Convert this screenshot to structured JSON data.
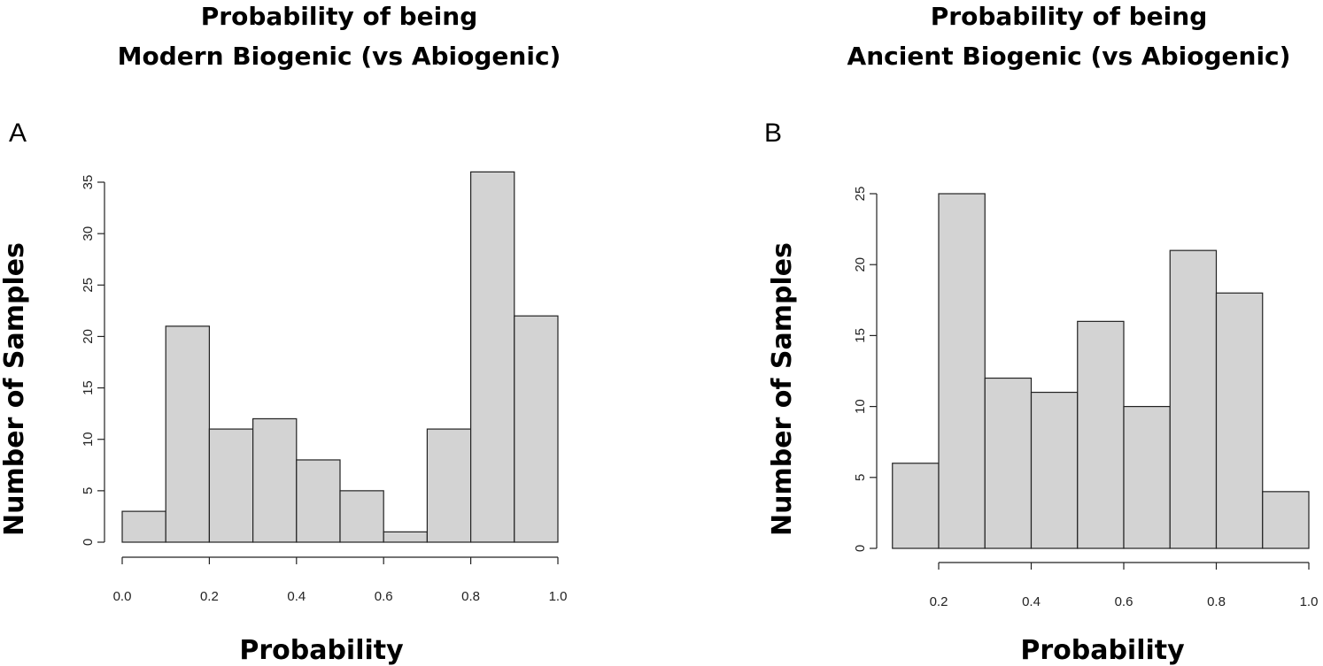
{
  "chart_data": [
    {
      "type": "bar",
      "panel_label": "A",
      "title_lines": [
        "Probability of being",
        "Modern Biogenic (vs Abiogenic)"
      ],
      "xlabel": "Probability",
      "ylabel": "Number of Samples",
      "bin_edges": [
        0.0,
        0.1,
        0.2,
        0.3,
        0.4,
        0.5,
        0.6,
        0.7,
        0.8,
        0.9,
        1.0
      ],
      "values": [
        3,
        21,
        11,
        12,
        8,
        5,
        1,
        11,
        36,
        22
      ],
      "xlim": [
        0.0,
        1.0
      ],
      "ylim": [
        0,
        36
      ],
      "xticks": [
        "0.0",
        "0.2",
        "0.4",
        "0.6",
        "0.8",
        "1.0"
      ],
      "yticks": [
        "0",
        "5",
        "10",
        "15",
        "20",
        "25",
        "30",
        "35"
      ],
      "bar_color": "#d3d3d3",
      "grid": false
    },
    {
      "type": "bar",
      "panel_label": "B",
      "title_lines": [
        "Probability of being",
        "Ancient Biogenic (vs Abiogenic)"
      ],
      "xlabel": "Probability",
      "ylabel": "Number of Samples",
      "bin_edges": [
        0.1,
        0.2,
        0.3,
        0.4,
        0.5,
        0.6,
        0.7,
        0.8,
        0.9,
        1.0
      ],
      "values": [
        6,
        25,
        12,
        11,
        16,
        10,
        21,
        18,
        4
      ],
      "xlim": [
        0.1,
        1.0
      ],
      "ylim": [
        0,
        25
      ],
      "xticks": [
        "0.2",
        "0.4",
        "0.6",
        "0.8",
        "1.0"
      ],
      "yticks": [
        "0",
        "5",
        "10",
        "15",
        "20",
        "25"
      ],
      "bar_color": "#d3d3d3",
      "grid": false
    }
  ]
}
